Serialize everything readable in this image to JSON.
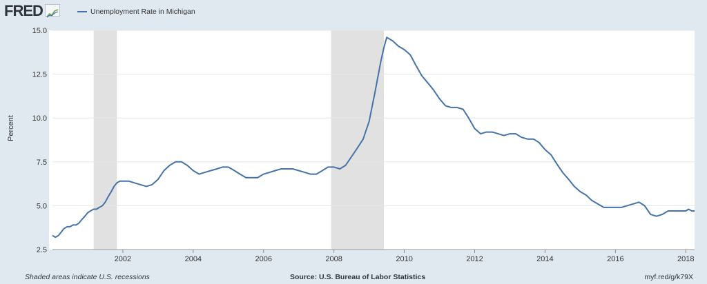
{
  "header": {
    "logo_text": "FRED",
    "logo_icon": "fred-graph-icon",
    "legend_label": "Unemployment Rate in Michigan"
  },
  "footer": {
    "left": "Shaded areas indicate U.S. recessions",
    "source": "Source: U.S. Bureau of Labor Statistics",
    "url": "myf.red/g/k79X"
  },
  "colors": {
    "line": "#4572a7",
    "recession": "#e1e1e1",
    "background": "#e1e9f0"
  },
  "chart_data": {
    "type": "line",
    "title": "",
    "xlabel": "",
    "ylabel": "Percent",
    "xlim": [
      2000.0,
      2018.25
    ],
    "ylim": [
      2.5,
      15.0
    ],
    "y_ticks": [
      2.5,
      5.0,
      7.5,
      10.0,
      12.5,
      15.0
    ],
    "y_tick_labels": [
      "2.5",
      "5.0",
      "7.5",
      "10.0",
      "12.5",
      "15.0"
    ],
    "x_ticks": [
      2002,
      2004,
      2006,
      2008,
      2010,
      2012,
      2014,
      2016,
      2018
    ],
    "x_tick_labels": [
      "2002",
      "2004",
      "2006",
      "2008",
      "2010",
      "2012",
      "2014",
      "2016",
      "2018"
    ],
    "grid": "horizontal",
    "recessions": [
      [
        2001.17,
        2001.83
      ],
      [
        2007.92,
        2009.42
      ]
    ],
    "series": [
      {
        "name": "Unemployment Rate in Michigan",
        "x": [
          2000.0,
          2000.08,
          2000.17,
          2000.25,
          2000.33,
          2000.42,
          2000.5,
          2000.58,
          2000.67,
          2000.75,
          2000.83,
          2000.92,
          2001.0,
          2001.08,
          2001.17,
          2001.25,
          2001.33,
          2001.42,
          2001.5,
          2001.58,
          2001.67,
          2001.75,
          2001.83,
          2001.92,
          2002.0,
          2002.17,
          2002.33,
          2002.5,
          2002.67,
          2002.83,
          2003.0,
          2003.17,
          2003.33,
          2003.5,
          2003.67,
          2003.83,
          2004.0,
          2004.17,
          2004.33,
          2004.5,
          2004.67,
          2004.83,
          2005.0,
          2005.17,
          2005.33,
          2005.5,
          2005.67,
          2005.83,
          2006.0,
          2006.17,
          2006.33,
          2006.5,
          2006.67,
          2006.83,
          2007.0,
          2007.17,
          2007.33,
          2007.5,
          2007.67,
          2007.83,
          2008.0,
          2008.17,
          2008.33,
          2008.5,
          2008.67,
          2008.83,
          2009.0,
          2009.17,
          2009.33,
          2009.42,
          2009.5,
          2009.67,
          2009.83,
          2010.0,
          2010.17,
          2010.33,
          2010.5,
          2010.67,
          2010.83,
          2011.0,
          2011.17,
          2011.33,
          2011.5,
          2011.67,
          2011.83,
          2012.0,
          2012.17,
          2012.33,
          2012.5,
          2012.67,
          2012.83,
          2013.0,
          2013.17,
          2013.33,
          2013.5,
          2013.67,
          2013.83,
          2014.0,
          2014.17,
          2014.33,
          2014.5,
          2014.67,
          2014.83,
          2015.0,
          2015.17,
          2015.33,
          2015.5,
          2015.67,
          2015.83,
          2016.0,
          2016.17,
          2016.33,
          2016.5,
          2016.67,
          2016.83,
          2017.0,
          2017.17,
          2017.33,
          2017.5,
          2017.67,
          2017.83,
          2018.0,
          2018.08,
          2018.17,
          2018.25
        ],
        "values": [
          3.3,
          3.2,
          3.3,
          3.5,
          3.7,
          3.8,
          3.8,
          3.9,
          3.9,
          4.0,
          4.2,
          4.4,
          4.6,
          4.7,
          4.8,
          4.8,
          4.9,
          5.0,
          5.2,
          5.5,
          5.8,
          6.1,
          6.3,
          6.4,
          6.4,
          6.4,
          6.3,
          6.2,
          6.1,
          6.2,
          6.5,
          7.0,
          7.3,
          7.5,
          7.5,
          7.3,
          7.0,
          6.8,
          6.9,
          7.0,
          7.1,
          7.2,
          7.2,
          7.0,
          6.8,
          6.6,
          6.6,
          6.6,
          6.8,
          6.9,
          7.0,
          7.1,
          7.1,
          7.1,
          7.0,
          6.9,
          6.8,
          6.8,
          7.0,
          7.2,
          7.2,
          7.1,
          7.3,
          7.8,
          8.3,
          8.8,
          9.8,
          11.5,
          13.2,
          14.0,
          14.6,
          14.4,
          14.1,
          13.9,
          13.6,
          13.0,
          12.4,
          12.0,
          11.6,
          11.1,
          10.7,
          10.6,
          10.6,
          10.5,
          10.0,
          9.4,
          9.1,
          9.2,
          9.2,
          9.1,
          9.0,
          9.1,
          9.1,
          8.9,
          8.8,
          8.8,
          8.6,
          8.2,
          7.9,
          7.4,
          6.9,
          6.5,
          6.1,
          5.8,
          5.6,
          5.3,
          5.1,
          4.9,
          4.9,
          4.9,
          4.9,
          5.0,
          5.1,
          5.2,
          5.0,
          4.5,
          4.4,
          4.5,
          4.7,
          4.7,
          4.7,
          4.7,
          4.8,
          4.7,
          4.7
        ]
      }
    ]
  }
}
